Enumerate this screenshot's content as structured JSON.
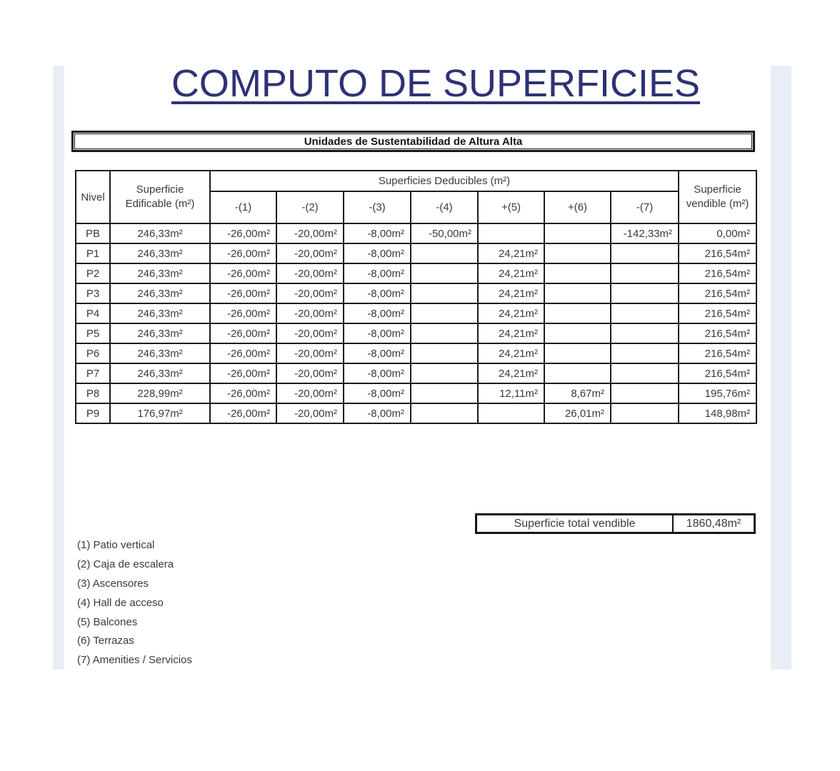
{
  "title": "COMPUTO DE SUPERFICIES",
  "subtitle": "Unidades de Sustentabilidad de Altura Alta",
  "table": {
    "nivel_header": "Nivel",
    "edificable_header_line1": "Superficie",
    "edificable_header_line2": "Edificable (m²)",
    "deducibles_group_header": "Superficies Deducibles (m²)",
    "deducible_columns": [
      "-(1)",
      "-(2)",
      "-(3)",
      "-(4)",
      "+(5)",
      "+(6)",
      "-(7)"
    ],
    "vendible_header_line1": "Superficie",
    "vendible_header_line2": "vendible (m²)",
    "rows": [
      {
        "nivel": "PB",
        "cells": [
          "246,33m²",
          "-26,00m²",
          "-20,00m²",
          "-8,00m²",
          "-50,00m²",
          "",
          "",
          "-142,33m²",
          "0,00m²"
        ]
      },
      {
        "nivel": "P1",
        "cells": [
          "246,33m²",
          "-26,00m²",
          "-20,00m²",
          "-8,00m²",
          "",
          "24,21m²",
          "",
          "",
          "216,54m²"
        ]
      },
      {
        "nivel": "P2",
        "cells": [
          "246,33m²",
          "-26,00m²",
          "-20,00m²",
          "-8,00m²",
          "",
          "24,21m²",
          "",
          "",
          "216,54m²"
        ]
      },
      {
        "nivel": "P3",
        "cells": [
          "246,33m²",
          "-26,00m²",
          "-20,00m²",
          "-8,00m²",
          "",
          "24,21m²",
          "",
          "",
          "216,54m²"
        ]
      },
      {
        "nivel": "P4",
        "cells": [
          "246,33m²",
          "-26,00m²",
          "-20,00m²",
          "-8,00m²",
          "",
          "24,21m²",
          "",
          "",
          "216,54m²"
        ]
      },
      {
        "nivel": "P5",
        "cells": [
          "246,33m²",
          "-26,00m²",
          "-20,00m²",
          "-8,00m²",
          "",
          "24,21m²",
          "",
          "",
          "216,54m²"
        ]
      },
      {
        "nivel": "P6",
        "cells": [
          "246,33m²",
          "-26,00m²",
          "-20,00m²",
          "-8,00m²",
          "",
          "24,21m²",
          "",
          "",
          "216,54m²"
        ]
      },
      {
        "nivel": "P7",
        "cells": [
          "246,33m²",
          "-26,00m²",
          "-20,00m²",
          "-8,00m²",
          "",
          "24,21m²",
          "",
          "",
          "216,54m²"
        ]
      },
      {
        "nivel": "P8",
        "cells": [
          "228,99m²",
          "-26,00m²",
          "-20,00m²",
          "-8,00m²",
          "",
          "12,11m²",
          "8,67m²",
          "",
          "195,76m²"
        ]
      },
      {
        "nivel": "P9",
        "cells": [
          "176,97m²",
          "-26,00m²",
          "-20,00m²",
          "-8,00m²",
          "",
          "",
          "26,01m²",
          "",
          "148,98m²"
        ]
      }
    ]
  },
  "total": {
    "label": "Superficie total vendible",
    "value": "1860,48m²"
  },
  "footnotes": [
    "(1) Patio vertical",
    "(2) Caja de escalera",
    "(3) Ascensores",
    "(4) Hall de acceso",
    "(5) Balcones",
    "(6) Terrazas",
    "(7) Amenities / Servicios"
  ],
  "colors": {
    "title": "#2e3274",
    "border": "#1c1c1c",
    "text": "#3a3a3a",
    "page_strip": "#e9eef6"
  }
}
